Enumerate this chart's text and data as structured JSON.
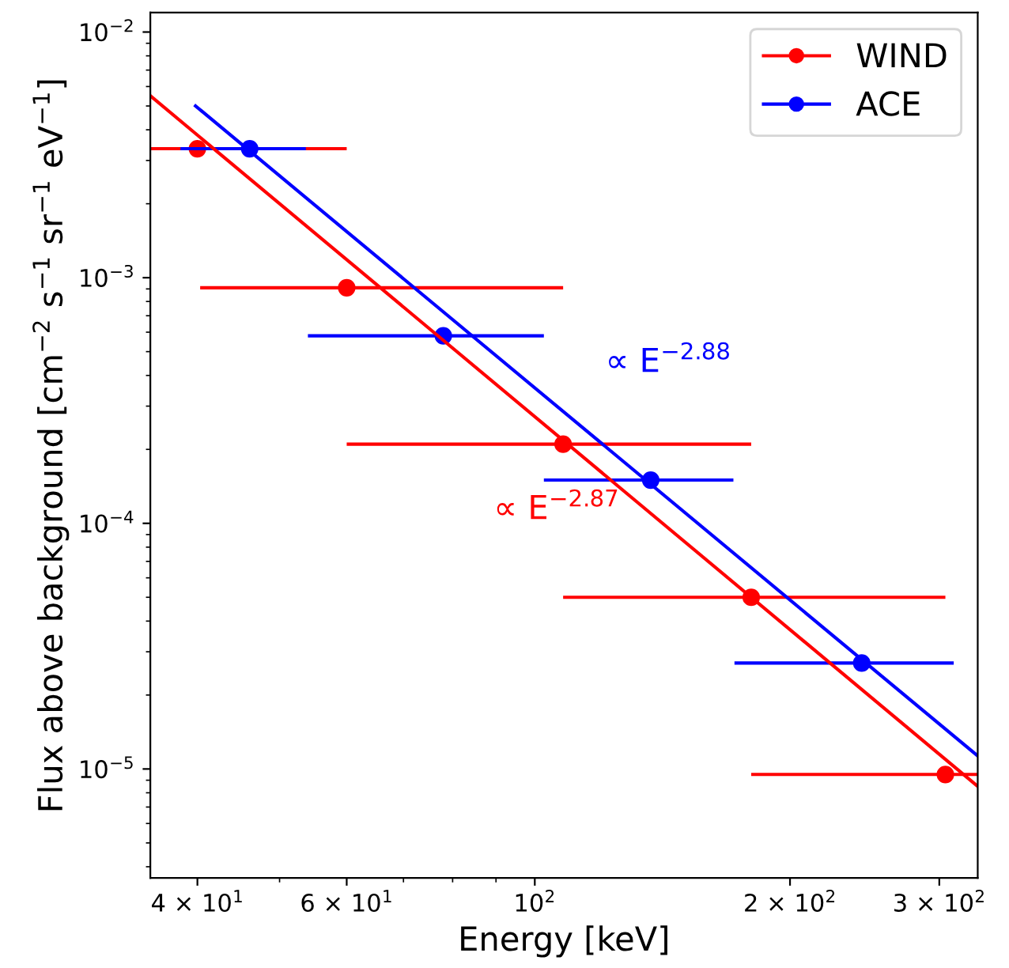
{
  "chart_data": {
    "type": "scatter",
    "xlabel": "Energy [keV]",
    "ylabel": "Flux above background [cm$^{−2}$ s$^{−1}$ sr$^{−1}$ eV$^{−1}$]",
    "log": "xy",
    "marker": "circle",
    "legend": "top right",
    "grid": false,
    "xlim": [
      35.2,
      333
    ],
    "ylim": [
      3.6e-06,
      0.012
    ],
    "xticks": [
      {
        "value": 40,
        "label": "4 × 10$^{1}$"
      },
      {
        "value": 60,
        "label": "6 × 10$^{1}$"
      },
      {
        "value": 100,
        "label": "10$^{2}$"
      },
      {
        "value": 200,
        "label": "2 × 10$^{2}$"
      },
      {
        "value": 300,
        "label": "3 × 10$^{2}$"
      }
    ],
    "yticks": [
      {
        "value": 1e-05,
        "label": "10$^{−5}$"
      },
      {
        "value": 0.0001,
        "label": "10$^{−4}$"
      },
      {
        "value": 0.001,
        "label": "10$^{−3}$"
      },
      {
        "value": 0.01,
        "label": "10$^{−2}$"
      }
    ],
    "series": [
      {
        "name": "WIND",
        "color": "#ff0000",
        "x": [
          40,
          60,
          108,
          180,
          305
        ],
        "values": [
          0.00335,
          0.00091,
          0.00021,
          5e-05,
          9.5e-06
        ],
        "xerrors": [
          [
            35.2,
            60
          ],
          [
            40.3,
            108
          ],
          [
            60,
            180
          ],
          [
            108,
            305
          ],
          [
            180,
            333
          ]
        ]
      },
      {
        "name": "ACE",
        "color": "#0000ff",
        "x": [
          46.1,
          78,
          137,
          243
        ],
        "values": [
          0.00335,
          0.00058,
          0.00015,
          2.7e-05
        ],
        "xerrors": [
          [
            38.2,
            53.7
          ],
          [
            54,
            102.5
          ],
          [
            102.5,
            171.5
          ],
          [
            172,
            312
          ]
        ]
      },
      {
        "type": "line",
        "marker": "none",
        "color": "#ff0000",
        "x": [
          35.2,
          333
        ],
        "values": [
          0.0055,
          8.5e-06
        ]
      },
      {
        "type": "line",
        "marker": "none",
        "color": "#0000ff",
        "x": [
          39.8,
          333
        ],
        "values": [
          0.005,
          1.13e-05
        ]
      }
    ],
    "annotations": [
      "∝ E$^{−2.88}$",
      "∝ E$^{−2.87}$"
    ]
  }
}
